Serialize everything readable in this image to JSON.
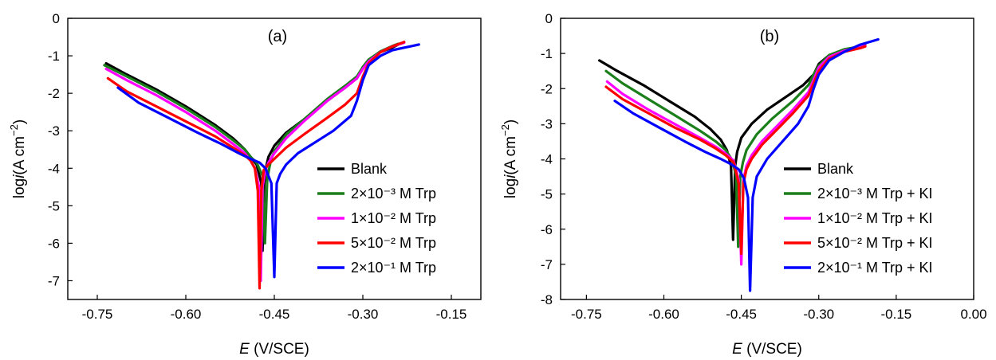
{
  "chart_data": [
    {
      "type": "line",
      "panel_label": "(a)",
      "xlabel_italic": "E",
      "xlabel_rest": " (V/SCE)",
      "ylabel_pre": "log",
      "ylabel_italic": "i",
      "ylabel_post": "(A cm",
      "ylabel_sup": "−2",
      "ylabel_close": ")",
      "xlim": [
        -0.8,
        -0.1
      ],
      "ylim": [
        -7.5,
        0
      ],
      "xticks": [
        -0.75,
        -0.6,
        -0.45,
        -0.3,
        -0.15
      ],
      "xtick_labels": [
        "-0.75",
        "-0.60",
        "-0.45",
        "-0.30",
        "-0.15"
      ],
      "yticks": [
        0,
        -1,
        -2,
        -3,
        -4,
        -5,
        -6,
        -7
      ],
      "ytick_labels": [
        "0",
        "-1",
        "-2",
        "-3",
        "-4",
        "-5",
        "-6",
        "-7"
      ],
      "legend_position": "lower-right",
      "series": [
        {
          "name": "Blank",
          "color": "#000000",
          "x": [
            -0.735,
            -0.7,
            -0.65,
            -0.6,
            -0.55,
            -0.52,
            -0.5,
            -0.49,
            -0.48,
            -0.472,
            -0.47,
            -0.467,
            -0.463,
            -0.46,
            -0.455,
            -0.45,
            -0.43,
            -0.4,
            -0.36,
            -0.33,
            -0.31,
            -0.3,
            -0.29,
            -0.27,
            -0.25,
            -0.24
          ],
          "y": [
            -1.2,
            -1.5,
            -1.9,
            -2.35,
            -2.85,
            -3.2,
            -3.5,
            -3.7,
            -3.9,
            -4.4,
            -6.2,
            -4.4,
            -3.9,
            -3.7,
            -3.55,
            -3.4,
            -3.05,
            -2.7,
            -2.2,
            -1.85,
            -1.6,
            -1.3,
            -1.1,
            -0.9,
            -0.78,
            -0.7
          ]
        },
        {
          "name": "2×10⁻³ M Trp",
          "color": "#1a7e1a",
          "x": [
            -0.738,
            -0.7,
            -0.65,
            -0.6,
            -0.55,
            -0.52,
            -0.5,
            -0.49,
            -0.48,
            -0.47,
            -0.466,
            -0.462,
            -0.458,
            -0.455,
            -0.45,
            -0.43,
            -0.4,
            -0.36,
            -0.33,
            -0.31,
            -0.3,
            -0.29,
            -0.27,
            -0.25,
            -0.24
          ],
          "y": [
            -1.25,
            -1.55,
            -1.95,
            -2.4,
            -2.9,
            -3.25,
            -3.5,
            -3.7,
            -3.85,
            -4.2,
            -6.0,
            -4.3,
            -3.95,
            -3.75,
            -3.55,
            -3.1,
            -2.7,
            -2.15,
            -1.8,
            -1.55,
            -1.3,
            -1.1,
            -0.88,
            -0.74,
            -0.68
          ]
        },
        {
          "name": "1×10⁻² M Trp",
          "color": "#ff00ff",
          "x": [
            -0.735,
            -0.7,
            -0.65,
            -0.6,
            -0.55,
            -0.52,
            -0.5,
            -0.49,
            -0.483,
            -0.476,
            -0.473,
            -0.47,
            -0.465,
            -0.46,
            -0.45,
            -0.43,
            -0.4,
            -0.36,
            -0.33,
            -0.31,
            -0.3,
            -0.29,
            -0.27,
            -0.25,
            -0.23
          ],
          "y": [
            -1.35,
            -1.65,
            -2.05,
            -2.5,
            -3.0,
            -3.35,
            -3.6,
            -3.8,
            -4.0,
            -4.5,
            -7.0,
            -4.5,
            -4.05,
            -3.85,
            -3.6,
            -3.2,
            -2.75,
            -2.2,
            -1.85,
            -1.6,
            -1.35,
            -1.15,
            -0.9,
            -0.75,
            -0.65
          ]
        },
        {
          "name": "5×10⁻² M Trp",
          "color": "#ff0000",
          "x": [
            -0.732,
            -0.7,
            -0.65,
            -0.6,
            -0.55,
            -0.52,
            -0.5,
            -0.49,
            -0.483,
            -0.478,
            -0.475,
            -0.472,
            -0.468,
            -0.46,
            -0.45,
            -0.43,
            -0.4,
            -0.36,
            -0.33,
            -0.31,
            -0.3,
            -0.29,
            -0.27,
            -0.25,
            -0.23
          ],
          "y": [
            -1.6,
            -1.95,
            -2.35,
            -2.75,
            -3.15,
            -3.45,
            -3.65,
            -3.8,
            -4.0,
            -4.6,
            -7.2,
            -4.6,
            -4.05,
            -3.9,
            -3.75,
            -3.45,
            -3.1,
            -2.65,
            -2.3,
            -2.0,
            -1.55,
            -1.2,
            -0.9,
            -0.75,
            -0.63
          ]
        },
        {
          "name": "2×10⁻¹ M Trp",
          "color": "#0000ff",
          "x": [
            -0.715,
            -0.68,
            -0.63,
            -0.58,
            -0.54,
            -0.51,
            -0.49,
            -0.475,
            -0.465,
            -0.455,
            -0.45,
            -0.446,
            -0.44,
            -0.43,
            -0.41,
            -0.38,
            -0.35,
            -0.32,
            -0.31,
            -0.3,
            -0.29,
            -0.27,
            -0.25,
            -0.22,
            -0.205
          ],
          "y": [
            -1.85,
            -2.25,
            -2.65,
            -3.05,
            -3.35,
            -3.6,
            -3.75,
            -3.85,
            -4.0,
            -4.4,
            -6.9,
            -4.4,
            -4.15,
            -3.9,
            -3.6,
            -3.3,
            -3.0,
            -2.6,
            -2.2,
            -1.65,
            -1.25,
            -1.0,
            -0.85,
            -0.75,
            -0.7
          ]
        }
      ]
    },
    {
      "type": "line",
      "panel_label": "(b)",
      "xlabel_italic": "E",
      "xlabel_rest": " (V/SCE)",
      "ylabel_pre": "log",
      "ylabel_italic": "i",
      "ylabel_post": "(A cm",
      "ylabel_sup": "−2",
      "ylabel_close": ")",
      "xlim": [
        -0.8,
        0.0
      ],
      "ylim": [
        -8,
        0
      ],
      "xticks": [
        -0.75,
        -0.6,
        -0.45,
        -0.3,
        -0.15,
        0.0
      ],
      "xtick_labels": [
        "-0.75",
        "-0.60",
        "-0.45",
        "-0.30",
        "-0.15",
        "0.00"
      ],
      "yticks": [
        0,
        -1,
        -2,
        -3,
        -4,
        -5,
        -6,
        -7,
        -8
      ],
      "ytick_labels": [
        "0",
        "-1",
        "-2",
        "-3",
        "-4",
        "-5",
        "-6",
        "-7",
        "-8"
      ],
      "legend_position": "lower-right",
      "series": [
        {
          "name": "Blank",
          "color": "#000000",
          "x": [
            -0.725,
            -0.69,
            -0.64,
            -0.59,
            -0.54,
            -0.51,
            -0.49,
            -0.478,
            -0.47,
            -0.466,
            -0.462,
            -0.458,
            -0.45,
            -0.43,
            -0.4,
            -0.36,
            -0.33,
            -0.31,
            -0.3,
            -0.28,
            -0.25,
            -0.22,
            -0.21
          ],
          "y": [
            -1.2,
            -1.5,
            -1.9,
            -2.35,
            -2.8,
            -3.15,
            -3.45,
            -3.75,
            -4.2,
            -6.3,
            -4.2,
            -3.8,
            -3.4,
            -3.0,
            -2.6,
            -2.2,
            -1.9,
            -1.6,
            -1.3,
            -1.05,
            -0.9,
            -0.8,
            -0.75
          ]
        },
        {
          "name": "2×10⁻³ M Trp + KI",
          "color": "#1a7e1a",
          "x": [
            -0.712,
            -0.68,
            -0.63,
            -0.58,
            -0.53,
            -0.5,
            -0.48,
            -0.467,
            -0.46,
            -0.456,
            -0.452,
            -0.447,
            -0.44,
            -0.42,
            -0.39,
            -0.35,
            -0.32,
            -0.31,
            -0.3,
            -0.28,
            -0.25,
            -0.22,
            -0.21
          ],
          "y": [
            -1.5,
            -1.85,
            -2.3,
            -2.75,
            -3.2,
            -3.5,
            -3.75,
            -4.05,
            -4.5,
            -6.5,
            -4.5,
            -4.1,
            -3.75,
            -3.3,
            -2.85,
            -2.35,
            -1.9,
            -1.6,
            -1.35,
            -1.05,
            -0.88,
            -0.8,
            -0.75
          ]
        },
        {
          "name": "1×10⁻² M Trp + KI",
          "color": "#ff00ff",
          "x": [
            -0.71,
            -0.68,
            -0.63,
            -0.58,
            -0.53,
            -0.5,
            -0.48,
            -0.465,
            -0.455,
            -0.45,
            -0.446,
            -0.44,
            -0.43,
            -0.41,
            -0.38,
            -0.35,
            -0.32,
            -0.31,
            -0.3,
            -0.28,
            -0.25,
            -0.22,
            -0.21
          ],
          "y": [
            -1.8,
            -2.15,
            -2.6,
            -3.0,
            -3.4,
            -3.65,
            -3.85,
            -4.05,
            -4.6,
            -7.0,
            -4.6,
            -4.2,
            -3.9,
            -3.5,
            -3.05,
            -2.6,
            -2.1,
            -1.75,
            -1.4,
            -1.1,
            -0.92,
            -0.82,
            -0.78
          ]
        },
        {
          "name": "5×10⁻² M Trp + KI",
          "color": "#ff0000",
          "x": [
            -0.712,
            -0.68,
            -0.63,
            -0.58,
            -0.53,
            -0.5,
            -0.48,
            -0.465,
            -0.455,
            -0.45,
            -0.446,
            -0.44,
            -0.43,
            -0.41,
            -0.38,
            -0.35,
            -0.32,
            -0.31,
            -0.3,
            -0.28,
            -0.25,
            -0.22,
            -0.21
          ],
          "y": [
            -1.95,
            -2.3,
            -2.7,
            -3.1,
            -3.45,
            -3.7,
            -3.9,
            -4.1,
            -4.7,
            -6.7,
            -4.7,
            -4.3,
            -4.0,
            -3.6,
            -3.15,
            -2.7,
            -2.2,
            -1.85,
            -1.5,
            -1.15,
            -0.95,
            -0.85,
            -0.8
          ]
        },
        {
          "name": "2×10⁻¹ M Trp + KI",
          "color": "#0000ff",
          "x": [
            -0.695,
            -0.66,
            -0.61,
            -0.56,
            -0.52,
            -0.49,
            -0.47,
            -0.455,
            -0.445,
            -0.437,
            -0.433,
            -0.428,
            -0.42,
            -0.4,
            -0.37,
            -0.34,
            -0.32,
            -0.31,
            -0.3,
            -0.28,
            -0.25,
            -0.22,
            -0.185
          ],
          "y": [
            -2.35,
            -2.7,
            -3.1,
            -3.5,
            -3.8,
            -4.0,
            -4.15,
            -4.3,
            -4.55,
            -5.1,
            -7.75,
            -5.1,
            -4.5,
            -4.0,
            -3.5,
            -3.0,
            -2.5,
            -2.0,
            -1.6,
            -1.2,
            -0.95,
            -0.75,
            -0.6
          ]
        }
      ]
    }
  ]
}
